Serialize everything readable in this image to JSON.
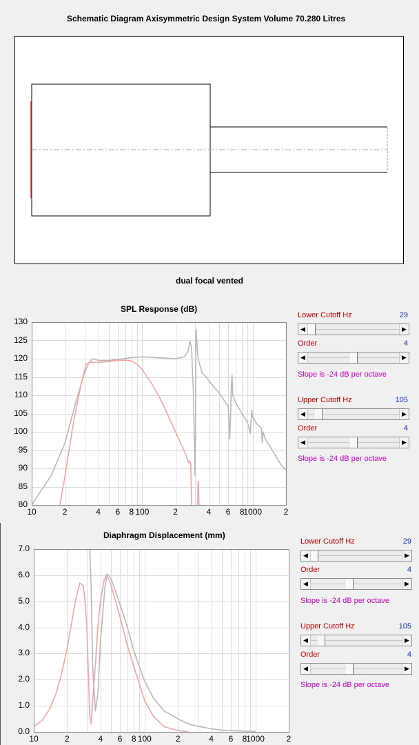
{
  "schematic": {
    "title": "Schematic Diagram   Axisymmetric Design   System Volume 70.280 Litres",
    "caption": "dual focal vented"
  },
  "spl_chart": {
    "title": "SPL Response (dB)",
    "y_ticks": [
      "130",
      "125",
      "120",
      "115",
      "110",
      "105",
      "100",
      "95",
      "90",
      "85",
      "80"
    ],
    "x_ticks": [
      "10",
      "2",
      "4",
      "6",
      "8",
      "100",
      "2",
      "4",
      "6",
      "8",
      "1000",
      "2"
    ]
  },
  "disp_chart": {
    "title": "Diaphragm Displacement (mm)",
    "y_ticks": [
      "7.0",
      "6.0",
      "5.0",
      "4.0",
      "3.0",
      "2.0",
      "1.0",
      "0.0"
    ],
    "x_ticks": [
      "10",
      "2",
      "4",
      "6",
      "8",
      "100",
      "2",
      "4",
      "6",
      "8",
      "1000",
      "2"
    ]
  },
  "spl_controls": {
    "lower_label": "Lower Cutoff  Hz",
    "lower_value": "29",
    "lower_order_label": "Order",
    "lower_order_value": "4",
    "lower_slope": "Slope is -24 dB per octave",
    "upper_label": "Upper Cutoff  Hz",
    "upper_value": "105",
    "upper_order_label": "Order",
    "upper_order_value": "4",
    "upper_slope": "Slope is -24 dB per octave"
  },
  "disp_controls": {
    "lower_label": "Lower Cutoff  Hz",
    "lower_value": "29",
    "lower_order_label": "Order",
    "lower_order_value": "4",
    "lower_slope": "Slope is -24 dB per octave",
    "upper_label": "Upper Cutoff  Hz",
    "upper_value": "105",
    "upper_order_label": "Order",
    "upper_order_value": "4",
    "upper_slope": "Slope is -24 dB per octave"
  },
  "chart_data": [
    {
      "type": "line",
      "title": "SPL Response (dB)",
      "x_scale": "log",
      "xlim": [
        10,
        2000
      ],
      "ylim": [
        80,
        130
      ],
      "grid": true,
      "series": [
        {
          "color": "#b8b8b8",
          "x": [
            10,
            15,
            20,
            25,
            30,
            33,
            36,
            40,
            50,
            60,
            80,
            100,
            150,
            200,
            240,
            260,
            270,
            280,
            285,
            290,
            300,
            303,
            306,
            310,
            320,
            350,
            380,
            400,
            500,
            600,
            620,
            630,
            640,
            650,
            660,
            680,
            700,
            800,
            900,
            950,
            980,
            1000,
            1100,
            1200,
            1220,
            1240,
            1300,
            1500,
            1800,
            2000
          ],
          "y": [
            80,
            88,
            97,
            108,
            116,
            119,
            120,
            119.5,
            119.5,
            119.8,
            120.3,
            120.5,
            120.2,
            120,
            120.5,
            122,
            124.8,
            123,
            116,
            112,
            88,
            98,
            128,
            126,
            120,
            116,
            115,
            114,
            110.5,
            107,
            98,
            104,
            112,
            115.5,
            110,
            109,
            108,
            105,
            102.5,
            99.5,
            106,
            104,
            102,
            101,
            97,
            100,
            98,
            95,
            91,
            89.5
          ]
        },
        {
          "color": "#f4a4a4",
          "x": [
            18,
            20,
            24,
            28,
            31,
            34,
            37,
            40,
            50,
            60,
            70,
            80,
            90,
            100,
            120,
            140,
            160,
            180,
            200,
            230,
            250,
            260,
            265,
            270,
            275,
            280
          ],
          "y": [
            80,
            88,
            103,
            113,
            118.5,
            119,
            119,
            119,
            119.2,
            119.5,
            119.6,
            119.4,
            118.5,
            117,
            113.5,
            110,
            106.5,
            103,
            100,
            96,
            93.5,
            92,
            91.5,
            92,
            91,
            80
          ]
        },
        {
          "color": "#f4a4a4",
          "x": [
            318,
            320,
            323,
            326
          ],
          "y": [
            80,
            86.5,
            86,
            80
          ]
        }
      ]
    },
    {
      "type": "line",
      "title": "Diaphragm Displacement (mm)",
      "x_scale": "log",
      "xlim": [
        10,
        2000
      ],
      "ylim": [
        0,
        7
      ],
      "grid": true,
      "series": [
        {
          "color": "#b8b8b8",
          "x": [
            30,
            32,
            33,
            34,
            36,
            38,
            40,
            44,
            46,
            50,
            60,
            70,
            80,
            100,
            120,
            150,
            200,
            250,
            300,
            400,
            500,
            600,
            800,
            1000
          ],
          "y": [
            7,
            7,
            5.5,
            2.5,
            0.8,
            1.5,
            3.5,
            5.6,
            6.05,
            5.85,
            4.9,
            4.0,
            3.1,
            1.95,
            1.3,
            0.8,
            0.5,
            0.3,
            0.22,
            0.12,
            0.07,
            0.05,
            0.03,
            0.02
          ]
        },
        {
          "color": "#f4a4a4",
          "x": [
            10,
            12,
            14,
            16,
            18,
            20,
            22,
            24,
            26,
            28,
            29,
            30,
            31,
            32,
            33,
            34,
            36,
            38,
            40,
            43,
            45,
            48,
            50,
            60,
            70,
            80,
            100,
            120,
            150,
            200,
            250
          ],
          "y": [
            0.2,
            0.45,
            0.9,
            1.5,
            2.3,
            3.2,
            4.2,
            5.1,
            5.7,
            5.6,
            5.0,
            4.2,
            2.5,
            0.6,
            0.3,
            1.2,
            2.6,
            4.1,
            5.0,
            5.8,
            6.0,
            5.8,
            5.6,
            4.4,
            3.3,
            2.5,
            1.2,
            0.6,
            0.2,
            0.05,
            0.0
          ]
        }
      ]
    }
  ]
}
